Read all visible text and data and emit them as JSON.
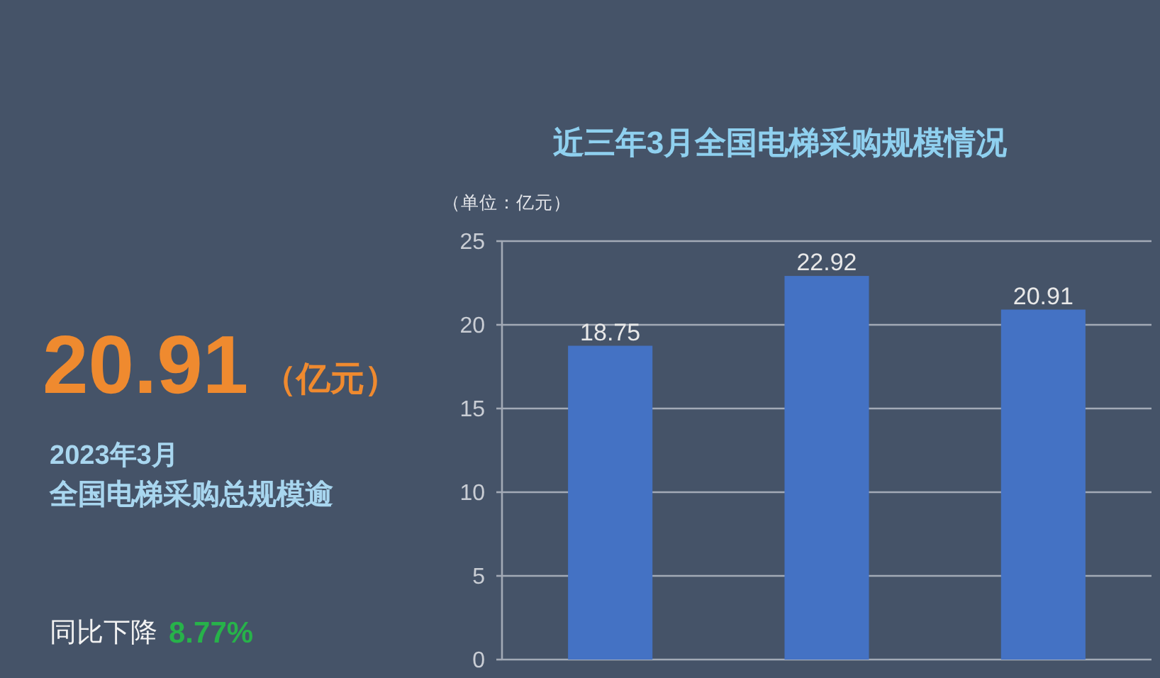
{
  "chart_data": [
    {
      "type": "other",
      "annotations": [
        "20.91",
        "（亿元）",
        "2023年3月",
        "全国电梯采购总规模逾",
        "同比下降",
        "8.77%"
      ]
    },
    {
      "type": "bar",
      "title": "近三年3月全国电梯采购规模情况",
      "ylabel": "（单位：亿元）",
      "categories": [
        null,
        null,
        null
      ],
      "values": [
        18.75,
        22.92,
        20.91
      ],
      "color": "#4472c4",
      "ylim": [
        0,
        25
      ],
      "yticks": [
        0,
        5,
        10,
        15,
        20,
        25
      ],
      "grid": "y",
      "data_labels": true
    }
  ]
}
